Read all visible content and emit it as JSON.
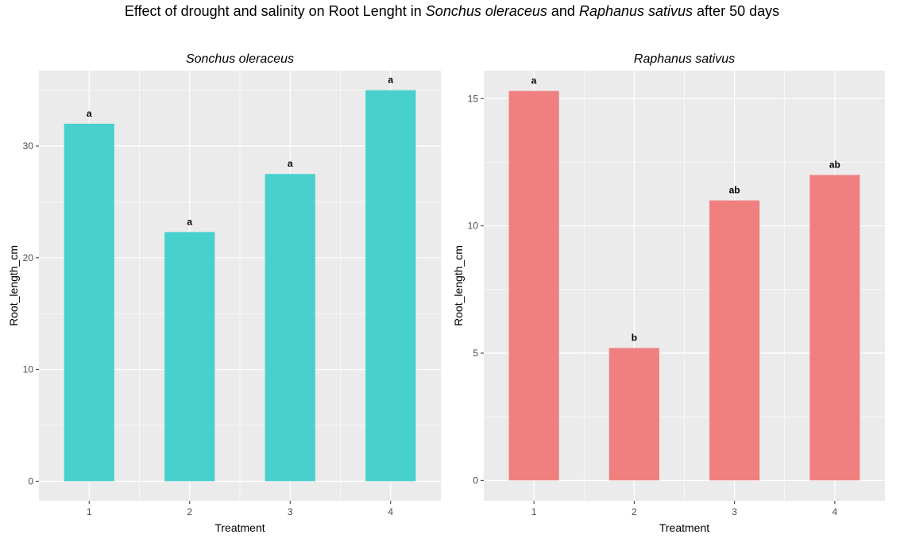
{
  "title": {
    "prefix": "Effect of drought and salinity on Root Lenght in ",
    "species1": "Sonchus oleraceus",
    "and": " and ",
    "species2": "Raphanus sativus",
    "suffix": " after 50 days"
  },
  "colors": {
    "panel_bg": "#ebebeb",
    "grid": "#ffffff",
    "tick_text": "#4d4d4d"
  },
  "chart_data": [
    {
      "type": "bar",
      "title": "Sonchus oleraceus",
      "xlabel": "Treatment",
      "ylabel": "Root_length_cm",
      "categories": [
        "1",
        "2",
        "3",
        "4"
      ],
      "values": [
        32,
        22.3,
        27.5,
        35
      ],
      "labels": [
        "a",
        "a",
        "a",
        "a"
      ],
      "ylim": [
        -1.75,
        36.75
      ],
      "yticks": [
        0,
        10,
        20,
        30
      ],
      "color": "#48d1cc",
      "grid": true
    },
    {
      "type": "bar",
      "title": "Raphanus sativus",
      "xlabel": "Treatment",
      "ylabel": "Root_length_cm",
      "categories": [
        "1",
        "2",
        "3",
        "4"
      ],
      "values": [
        15.3,
        5.2,
        11,
        12
      ],
      "labels": [
        "a",
        "b",
        "ab",
        "ab"
      ],
      "ylim": [
        -0.8,
        16.1
      ],
      "yticks": [
        0,
        5,
        10,
        15
      ],
      "color": "#f08080",
      "grid": true
    }
  ]
}
